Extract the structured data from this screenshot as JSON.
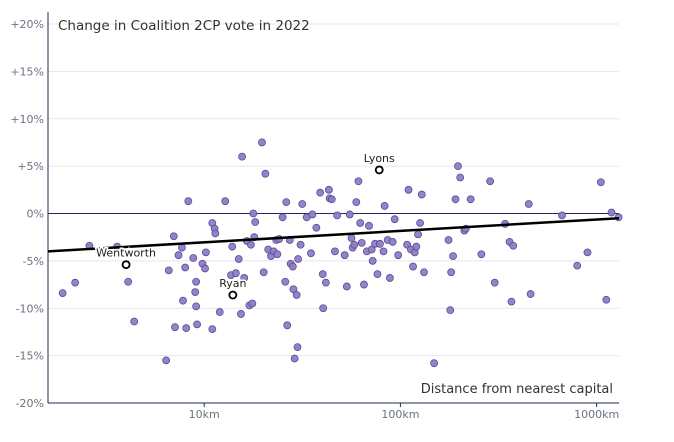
{
  "chart_data": {
    "type": "scatter",
    "title": "Change in Coalition 2CP vote in 2022",
    "xlabel": "Distance from nearest capital",
    "ylabel": "",
    "xscale": "log",
    "xlim": [
      1.6,
      1300
    ],
    "ylim": [
      -20,
      20
    ],
    "grid": "y-only",
    "legend": "none",
    "x_ticks": [
      {
        "value": 10,
        "label": "10km"
      },
      {
        "value": 100,
        "label": "100km"
      },
      {
        "value": 1000,
        "label": "1000km"
      }
    ],
    "y_ticks": [
      {
        "value": 20,
        "label": "+20%"
      },
      {
        "value": 15,
        "label": "+15%"
      },
      {
        "value": 10,
        "label": "+10%"
      },
      {
        "value": 5,
        "label": "+5%"
      },
      {
        "value": 0,
        "label": "0%"
      },
      {
        "value": -5,
        "label": "-5%"
      },
      {
        "value": -10,
        "label": "-10%"
      },
      {
        "value": -15,
        "label": "-15%"
      },
      {
        "value": -20,
        "label": "-20%"
      }
    ],
    "colors": {
      "point_fill": "#8e7cc3",
      "point_stroke": "#5b4a9b",
      "trend": "#000000",
      "axis": "#1f2a5a",
      "grid": "#e5e7eb"
    },
    "trend_line": {
      "x": [
        1.6,
        1300
      ],
      "y": [
        -4.0,
        -0.5
      ]
    },
    "highlighted": [
      {
        "label": "Wentworth",
        "x": 4.0,
        "y": -5.4
      },
      {
        "label": "Ryan",
        "x": 14.0,
        "y": -8.6
      },
      {
        "label": "Lyons",
        "x": 78.0,
        "y": 4.6
      }
    ],
    "points": [
      {
        "x": 1.9,
        "y": -8.4
      },
      {
        "x": 2.2,
        "y": -7.3
      },
      {
        "x": 2.6,
        "y": -3.4
      },
      {
        "x": 3.6,
        "y": -3.5
      },
      {
        "x": 4.1,
        "y": -7.2
      },
      {
        "x": 4.4,
        "y": -11.4
      },
      {
        "x": 6.4,
        "y": -15.5
      },
      {
        "x": 6.6,
        "y": -6.0
      },
      {
        "x": 7.0,
        "y": -2.4
      },
      {
        "x": 7.1,
        "y": -12.0
      },
      {
        "x": 7.4,
        "y": -4.4
      },
      {
        "x": 7.7,
        "y": -3.6
      },
      {
        "x": 7.8,
        "y": -9.2
      },
      {
        "x": 8.0,
        "y": -5.7
      },
      {
        "x": 8.1,
        "y": -12.1
      },
      {
        "x": 8.3,
        "y": 1.3
      },
      {
        "x": 8.8,
        "y": -4.7
      },
      {
        "x": 9.0,
        "y": -8.3
      },
      {
        "x": 9.1,
        "y": -9.8
      },
      {
        "x": 9.1,
        "y": -7.2
      },
      {
        "x": 9.2,
        "y": -11.7
      },
      {
        "x": 9.8,
        "y": -5.3
      },
      {
        "x": 10.1,
        "y": -5.8
      },
      {
        "x": 10.2,
        "y": -4.1
      },
      {
        "x": 11.0,
        "y": -1.0
      },
      {
        "x": 11.0,
        "y": -12.2
      },
      {
        "x": 11.3,
        "y": -1.6
      },
      {
        "x": 11.4,
        "y": -2.1
      },
      {
        "x": 12.0,
        "y": -10.4
      },
      {
        "x": 12.8,
        "y": 1.3
      },
      {
        "x": 13.7,
        "y": -6.5
      },
      {
        "x": 13.9,
        "y": -3.5
      },
      {
        "x": 14.5,
        "y": -6.3
      },
      {
        "x": 15.0,
        "y": -4.8
      },
      {
        "x": 15.4,
        "y": -10.6
      },
      {
        "x": 15.6,
        "y": 6.0
      },
      {
        "x": 16.0,
        "y": -6.8
      },
      {
        "x": 16.5,
        "y": -2.9
      },
      {
        "x": 17.0,
        "y": -9.7
      },
      {
        "x": 17.3,
        "y": -3.3
      },
      {
        "x": 17.6,
        "y": -9.5
      },
      {
        "x": 17.8,
        "y": 0.0
      },
      {
        "x": 18.0,
        "y": -2.5
      },
      {
        "x": 18.2,
        "y": -0.9
      },
      {
        "x": 19.7,
        "y": 7.5
      },
      {
        "x": 20.1,
        "y": -6.2
      },
      {
        "x": 20.5,
        "y": 4.2
      },
      {
        "x": 21.2,
        "y": -3.8
      },
      {
        "x": 21.9,
        "y": -4.5
      },
      {
        "x": 22.6,
        "y": -4.0
      },
      {
        "x": 23.3,
        "y": -2.8
      },
      {
        "x": 23.6,
        "y": -4.3
      },
      {
        "x": 24.1,
        "y": -2.7
      },
      {
        "x": 25.1,
        "y": -0.4
      },
      {
        "x": 25.9,
        "y": -7.2
      },
      {
        "x": 26.2,
        "y": 1.2
      },
      {
        "x": 26.5,
        "y": -11.8
      },
      {
        "x": 27.3,
        "y": -2.8
      },
      {
        "x": 27.6,
        "y": -5.3
      },
      {
        "x": 28.3,
        "y": -5.6
      },
      {
        "x": 28.5,
        "y": -8.0
      },
      {
        "x": 28.9,
        "y": -15.3
      },
      {
        "x": 29.6,
        "y": -8.6
      },
      {
        "x": 29.9,
        "y": -14.1
      },
      {
        "x": 30.1,
        "y": -4.8
      },
      {
        "x": 31.0,
        "y": -3.3
      },
      {
        "x": 31.6,
        "y": 1.0
      },
      {
        "x": 33.3,
        "y": -0.4
      },
      {
        "x": 35.0,
        "y": -4.2
      },
      {
        "x": 35.6,
        "y": -0.1
      },
      {
        "x": 37.3,
        "y": -1.5
      },
      {
        "x": 39.0,
        "y": 2.2
      },
      {
        "x": 40.2,
        "y": -6.4
      },
      {
        "x": 40.4,
        "y": -10.0
      },
      {
        "x": 41.7,
        "y": -7.3
      },
      {
        "x": 43.2,
        "y": 2.5
      },
      {
        "x": 43.6,
        "y": 1.6
      },
      {
        "x": 44.7,
        "y": 1.5
      },
      {
        "x": 46.4,
        "y": -4.0
      },
      {
        "x": 47.6,
        "y": -0.2
      },
      {
        "x": 52.0,
        "y": -4.4
      },
      {
        "x": 53.3,
        "y": -7.7
      },
      {
        "x": 55.2,
        "y": -0.1
      },
      {
        "x": 56.3,
        "y": -2.6
      },
      {
        "x": 57.1,
        "y": -3.6
      },
      {
        "x": 58.2,
        "y": -3.3
      },
      {
        "x": 59.6,
        "y": 1.2
      },
      {
        "x": 61.1,
        "y": 3.4
      },
      {
        "x": 62.4,
        "y": -1.0
      },
      {
        "x": 63.5,
        "y": -3.1
      },
      {
        "x": 65.2,
        "y": -7.5
      },
      {
        "x": 67.5,
        "y": -4.0
      },
      {
        "x": 69.2,
        "y": -1.3
      },
      {
        "x": 71.4,
        "y": -3.8
      },
      {
        "x": 72.2,
        "y": -5.0
      },
      {
        "x": 74.3,
        "y": -3.2
      },
      {
        "x": 76.4,
        "y": -6.4
      },
      {
        "x": 78.6,
        "y": -3.2
      },
      {
        "x": 82.0,
        "y": -4.0
      },
      {
        "x": 83.1,
        "y": 0.8
      },
      {
        "x": 86.1,
        "y": -2.8
      },
      {
        "x": 88.4,
        "y": -6.8
      },
      {
        "x": 91.3,
        "y": -3.0
      },
      {
        "x": 93.5,
        "y": -0.6
      },
      {
        "x": 97.4,
        "y": -4.4
      },
      {
        "x": 108.2,
        "y": -3.3
      },
      {
        "x": 110.0,
        "y": 2.5
      },
      {
        "x": 113.1,
        "y": -3.8
      },
      {
        "x": 116.0,
        "y": -5.6
      },
      {
        "x": 118.3,
        "y": -4.1
      },
      {
        "x": 120.6,
        "y": -3.5
      },
      {
        "x": 123.0,
        "y": -2.2
      },
      {
        "x": 126.0,
        "y": -1.0
      },
      {
        "x": 128.5,
        "y": 2.0
      },
      {
        "x": 131.9,
        "y": -6.2
      },
      {
        "x": 148.5,
        "y": -15.8
      },
      {
        "x": 175.9,
        "y": -2.8
      },
      {
        "x": 179.5,
        "y": -10.2
      },
      {
        "x": 181.4,
        "y": -6.2
      },
      {
        "x": 185.5,
        "y": -4.5
      },
      {
        "x": 190.9,
        "y": 1.5
      },
      {
        "x": 196.5,
        "y": 5.0
      },
      {
        "x": 201.7,
        "y": 3.8
      },
      {
        "x": 211.9,
        "y": -1.8
      },
      {
        "x": 215.6,
        "y": -1.6
      },
      {
        "x": 228.0,
        "y": 1.5
      },
      {
        "x": 258.6,
        "y": -4.3
      },
      {
        "x": 286.5,
        "y": 3.4
      },
      {
        "x": 302.5,
        "y": -7.3
      },
      {
        "x": 341.6,
        "y": -1.1
      },
      {
        "x": 360.0,
        "y": -3.0
      },
      {
        "x": 367.9,
        "y": -9.3
      },
      {
        "x": 375.8,
        "y": -3.4
      },
      {
        "x": 450.9,
        "y": 1.0
      },
      {
        "x": 460.7,
        "y": -8.5
      },
      {
        "x": 666.1,
        "y": -0.2
      },
      {
        "x": 796.1,
        "y": -5.5
      },
      {
        "x": 898.0,
        "y": -4.1
      },
      {
        "x": 1050.9,
        "y": 3.3
      },
      {
        "x": 1120.0,
        "y": -9.1
      },
      {
        "x": 1190.8,
        "y": 0.1
      },
      {
        "x": 1293.3,
        "y": -0.4
      }
    ]
  }
}
